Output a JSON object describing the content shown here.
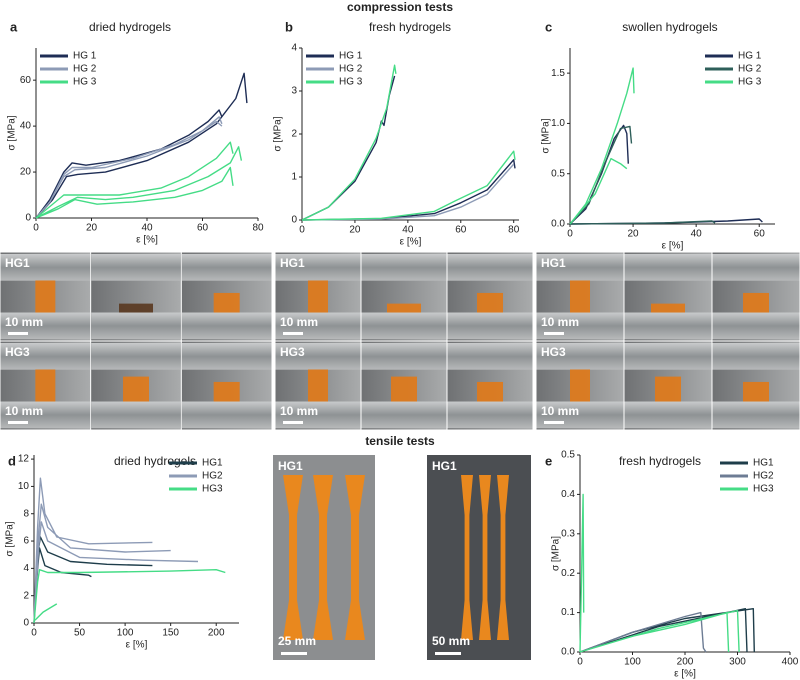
{
  "sections": [
    "compression tests",
    "tensile tests"
  ],
  "photos": [
    {
      "rows": [
        {
          "label": "HG1",
          "scale": "10 mm"
        },
        {
          "label": "HG3",
          "scale": "10 mm"
        }
      ]
    },
    {
      "rows": [
        {
          "label": "HG1",
          "scale": "10 mm"
        },
        {
          "label": "HG3",
          "scale": "10 mm"
        }
      ]
    },
    {
      "rows": [
        {
          "label": "HG1",
          "scale": "10 mm"
        },
        {
          "label": "HG3",
          "scale": "10 mm"
        }
      ]
    }
  ],
  "tensile_photos": [
    {
      "label": "HG1",
      "scale": "25 mm"
    },
    {
      "label": "HG1",
      "scale": "50 mm"
    }
  ],
  "chart_data": [
    {
      "type": "line",
      "panel": "a",
      "title": "dried hydrogels",
      "xlabel": "ε [%]",
      "ylabel": "σ [MPa]",
      "xlim": [
        0,
        80
      ],
      "ylim": [
        0,
        74
      ],
      "xticks": [
        0,
        20,
        40,
        60,
        80
      ],
      "yticks": [
        0,
        20,
        40,
        60
      ],
      "legend": "upper left",
      "series": [
        {
          "name": "HG 1",
          "color": "#1e2d55",
          "x": [
            0,
            5,
            10,
            13,
            18,
            30,
            45,
            55,
            62,
            66,
            67,
            null,
            0,
            6,
            11,
            15,
            25,
            40,
            55,
            65,
            72,
            75,
            76
          ],
          "values": [
            0,
            8,
            20,
            24,
            23,
            25,
            30,
            36,
            42,
            47,
            44,
            null,
            0,
            8,
            18,
            19,
            20,
            25,
            33,
            41,
            52,
            63,
            50
          ]
        },
        {
          "name": "HG 2",
          "color": "#8d9bb6",
          "x": [
            0,
            5,
            10,
            13,
            20,
            35,
            50,
            60,
            66,
            67,
            null,
            0,
            5,
            10,
            14,
            25,
            40,
            55,
            65,
            67
          ],
          "values": [
            0,
            7,
            19,
            22,
            22,
            26,
            32,
            38,
            44,
            41,
            null,
            0,
            7,
            18,
            21,
            22,
            27,
            34,
            42,
            40
          ]
        },
        {
          "name": "HG 3",
          "color": "#45dc86",
          "x": [
            0,
            5,
            10,
            20,
            30,
            45,
            55,
            65,
            70,
            71,
            null,
            0,
            8,
            15,
            25,
            35,
            50,
            62,
            70,
            73,
            74,
            null,
            0,
            8,
            14,
            22,
            35,
            50,
            60,
            67,
            70,
            71
          ],
          "values": [
            0,
            5,
            10,
            10,
            10,
            13,
            18,
            26,
            33,
            28,
            null,
            0,
            5,
            9,
            8,
            9,
            12,
            18,
            24,
            31,
            25,
            null,
            0,
            4,
            8,
            6,
            7,
            9,
            12,
            16,
            22,
            14
          ]
        }
      ]
    },
    {
      "type": "line",
      "panel": "b",
      "title": "fresh hydrogels",
      "xlabel": "ε [%]",
      "ylabel": "σ [MPa]",
      "xlim": [
        0,
        82
      ],
      "ylim": [
        0,
        4
      ],
      "xticks": [
        0,
        20,
        40,
        60,
        80
      ],
      "yticks": [
        0,
        1,
        2,
        3,
        4
      ],
      "legend": "upper left",
      "series": [
        {
          "name": "HG 1",
          "color": "#1e2d55",
          "x": [
            0,
            10,
            20,
            28,
            30,
            31,
            33,
            35,
            null,
            0,
            30,
            50,
            60,
            70,
            80,
            80.5
          ],
          "values": [
            0,
            0.3,
            0.9,
            1.8,
            2.3,
            2.2,
            2.9,
            3.35,
            null,
            0,
            0.03,
            0.15,
            0.4,
            0.7,
            1.4,
            1.2
          ]
        },
        {
          "name": "HG 2",
          "color": "#8d9bb6",
          "x": [
            0,
            30,
            50,
            60,
            70,
            80
          ],
          "values": [
            0,
            0.02,
            0.1,
            0.3,
            0.6,
            1.3
          ]
        },
        {
          "name": "HG 3",
          "color": "#45dc86",
          "x": [
            0,
            10,
            20,
            28,
            32,
            35,
            35.5,
            null,
            0,
            30,
            50,
            58,
            70,
            80,
            80.5
          ],
          "values": [
            0,
            0.3,
            0.95,
            1.9,
            2.6,
            3.6,
            3.4,
            null,
            0,
            0.04,
            0.2,
            0.45,
            0.8,
            1.6,
            1.4
          ]
        }
      ]
    },
    {
      "type": "line",
      "panel": "c",
      "title": "swollen  hydrogels",
      "xlabel": "ε [%]",
      "ylabel": "σ [MPa]",
      "xlim": [
        0,
        65
      ],
      "ylim": [
        0,
        1.75
      ],
      "xticks": [
        0,
        20,
        40,
        60
      ],
      "yticks": [
        {
          "value": 0,
          "label": "0.0"
        },
        0.5,
        {
          "value": 1,
          "label": "1.0"
        },
        1.5
      ],
      "legend": "upper right",
      "series": [
        {
          "name": "HG 1",
          "color": "#1e2d55",
          "x": [
            0,
            5,
            10,
            14,
            17,
            18,
            18.5,
            null,
            0,
            30,
            50,
            60,
            61
          ],
          "values": [
            0,
            0.15,
            0.5,
            0.85,
            0.98,
            0.9,
            0.6,
            null,
            0,
            0.01,
            0.03,
            0.05,
            0.02
          ]
        },
        {
          "name": "HG 2",
          "color": "#2e5f5a",
          "x": [
            0,
            6,
            11,
            16,
            19,
            19.5,
            null,
            0,
            30,
            45,
            46
          ],
          "values": [
            0,
            0.2,
            0.6,
            0.95,
            0.97,
            0.8,
            null,
            0,
            0.01,
            0.03,
            0.01
          ]
        },
        {
          "name": "HG 3",
          "color": "#45dc86",
          "x": [
            0,
            5,
            10,
            15,
            18,
            20,
            20.3,
            null,
            0,
            8,
            13,
            16,
            18
          ],
          "values": [
            0,
            0.2,
            0.55,
            1.0,
            1.3,
            1.55,
            1.3,
            null,
            0,
            0.3,
            0.65,
            0.6,
            0.55
          ]
        }
      ]
    },
    {
      "type": "line",
      "panel": "d",
      "title": "dried hydrogels",
      "xlabel": "ε [%]",
      "ylabel": "σ [MPa]",
      "xlim": [
        0,
        225
      ],
      "ylim": [
        0,
        12.3
      ],
      "xticks": [
        0,
        50,
        100,
        150,
        200
      ],
      "yticks": [
        0,
        2,
        4,
        6,
        8,
        10,
        12
      ],
      "legend": "upper right",
      "series": [
        {
          "name": "HG1",
          "color": "#1e3d4a",
          "x": [
            0,
            4,
            6,
            12,
            30,
            60,
            63,
            null,
            0,
            4,
            7,
            15,
            40,
            80,
            130
          ],
          "values": [
            0,
            4,
            5.5,
            4.2,
            3.7,
            3.5,
            3.4,
            null,
            0,
            5,
            6.3,
            5.2,
            4.5,
            4.3,
            4.2
          ]
        },
        {
          "name": "HG2",
          "color": "#8d9bb6",
          "x": [
            0,
            4,
            7,
            12,
            25,
            60,
            130,
            null,
            0,
            5,
            8,
            15,
            40,
            100,
            150,
            null,
            0,
            5,
            8,
            15,
            50,
            120,
            180
          ],
          "values": [
            0,
            7,
            10.6,
            8,
            6.3,
            5.8,
            5.9,
            null,
            0,
            6.5,
            8.7,
            7,
            5.5,
            5.2,
            5.3,
            null,
            0,
            5.5,
            7.4,
            6,
            4.8,
            4.6,
            4.5
          ]
        },
        {
          "name": "HG3",
          "color": "#45dc86",
          "x": [
            0,
            4,
            6,
            15,
            50,
            150,
            200,
            210,
            null,
            1,
            10,
            20,
            25
          ],
          "values": [
            0,
            3,
            3.9,
            3.7,
            3.7,
            3.8,
            3.9,
            3.7,
            null,
            0.2,
            0.8,
            1.2,
            1.4
          ]
        }
      ]
    },
    {
      "type": "line",
      "panel": "e",
      "title": "fresh hydrogels",
      "xlabel": "ε [%]",
      "ylabel": "σ [MPa]",
      "xlim": [
        0,
        400
      ],
      "ylim": [
        0,
        0.5
      ],
      "xticks": [
        0,
        100,
        200,
        300,
        400
      ],
      "yticks": [
        {
          "value": 0,
          "label": "0.0"
        },
        0.1,
        0.2,
        0.3,
        0.4,
        0.5
      ],
      "legend": "upper right",
      "series": [
        {
          "name": "HG1",
          "color": "#1e3d4a",
          "x": [
            0,
            100,
            200,
            330,
            332,
            null,
            0,
            150,
            280,
            315,
            318
          ],
          "values": [
            0,
            0.05,
            0.085,
            0.11,
            0,
            null,
            0,
            0.065,
            0.1,
            0.11,
            0
          ]
        },
        {
          "name": "HG2",
          "color": "#6d7c94",
          "x": [
            0,
            100,
            200,
            230,
            235,
            240
          ],
          "values": [
            0,
            0.05,
            0.09,
            0.1,
            0.01,
            0
          ]
        },
        {
          "name": "HG3",
          "color": "#45dc86",
          "x": [
            0,
            3,
            6,
            7,
            null,
            0,
            100,
            200,
            280,
            283,
            null,
            0,
            150,
            300,
            303
          ],
          "values": [
            0,
            0.2,
            0.4,
            0.1,
            null,
            0,
            0.04,
            0.07,
            0.1,
            0,
            null,
            0,
            0.06,
            0.105,
            0
          ]
        }
      ]
    }
  ]
}
